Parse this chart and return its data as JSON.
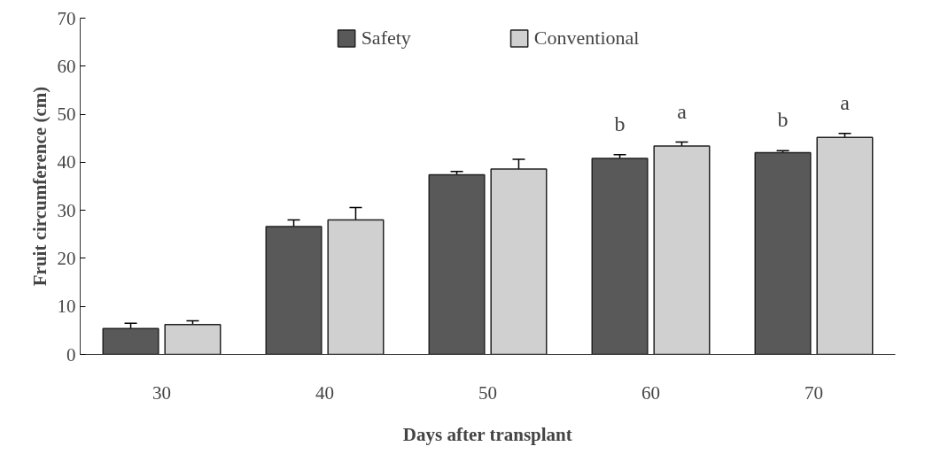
{
  "chart_data": {
    "type": "bar",
    "xlabel": "Days after transplant",
    "ylabel": "Fruit circumference (cm)",
    "categories": [
      "30",
      "40",
      "50",
      "60",
      "70"
    ],
    "series": [
      {
        "name": "Safety",
        "color": "#595959",
        "values": [
          5.4,
          26.6,
          37.4,
          40.8,
          42.0
        ],
        "errors": [
          1.1,
          1.4,
          0.7,
          0.8,
          0.4
        ]
      },
      {
        "name": "Conventional",
        "color": "#d0d0d0",
        "values": [
          6.2,
          28.0,
          38.6,
          43.4,
          45.2
        ],
        "errors": [
          0.8,
          2.6,
          2.0,
          0.8,
          0.8
        ]
      }
    ],
    "ylim": [
      0,
      70
    ],
    "yticks": [
      0,
      10,
      20,
      30,
      40,
      50,
      60,
      70
    ],
    "grid": false,
    "legend": "top",
    "annotations": [
      "b",
      "a",
      "b",
      "a"
    ]
  }
}
